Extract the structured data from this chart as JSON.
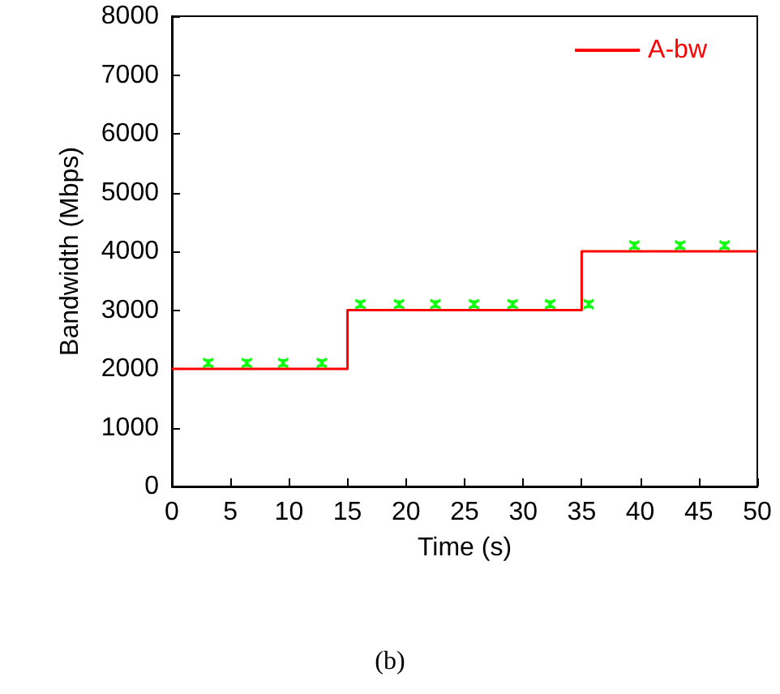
{
  "chart_data": {
    "type": "scatter",
    "xlabel": "Time (s)",
    "ylabel": "Bandwidth (Mbps)",
    "xlim": [
      0,
      50
    ],
    "xticks": [
      0,
      5,
      10,
      15,
      20,
      25,
      30,
      35,
      40,
      45,
      50
    ],
    "ylim": [
      0,
      8000
    ],
    "yticks": [
      0,
      1000,
      2000,
      3000,
      4000,
      5000,
      6000,
      7000,
      8000
    ],
    "grid": false,
    "legend": "top right",
    "annotations": [
      "(b)"
    ],
    "series": [
      {
        "color": "#00ff00",
        "marker": "cross",
        "x": [
          3.1,
          6.4,
          9.5,
          12.8,
          16.1,
          19.4,
          22.5,
          25.8,
          29.1,
          32.3,
          35.6,
          39.5,
          43.4,
          47.2
        ],
        "values": [
          2100,
          2100,
          2100,
          2100,
          3100,
          3100,
          3100,
          3100,
          3100,
          3100,
          3100,
          4100,
          4100,
          4100
        ],
        "errors": [
          50,
          50,
          50,
          50,
          50,
          50,
          50,
          50,
          50,
          50,
          50,
          50,
          50,
          50
        ]
      },
      {
        "type": "line",
        "name": "A-bw",
        "color": "#ff0000",
        "marker": "none",
        "line_style": "solid",
        "x": [
          0,
          15,
          15,
          35,
          35,
          50
        ],
        "values": [
          2000,
          2000,
          3000,
          3000,
          4000,
          4000
        ]
      }
    ]
  }
}
